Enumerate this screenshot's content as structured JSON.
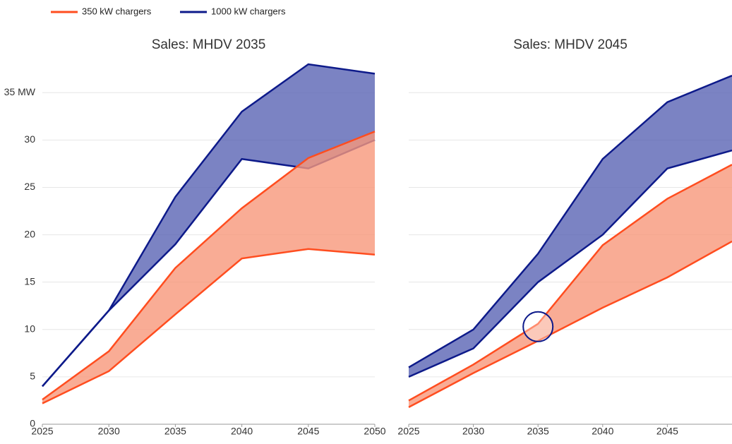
{
  "chart_data": [
    {
      "type": "range-area",
      "title": "Sales: MHDV 2035",
      "x": [
        2025,
        2030,
        2035,
        2040,
        2045,
        2050
      ],
      "xlim": [
        2025,
        2050
      ],
      "xticks": [
        2025,
        2030,
        2035,
        2040,
        2045,
        2050
      ],
      "ylim": [
        0,
        38
      ],
      "yticks": [
        0,
        5,
        10,
        15,
        20,
        25,
        30,
        {
          "value": 35,
          "label": "35 MW"
        }
      ],
      "grid": true,
      "show_ytick_labels": true,
      "series": [
        {
          "name": "350 kW chargers",
          "color": "#ff4d1f",
          "fill": "#f7977a",
          "high": [
            2.6,
            7.7,
            16.5,
            22.8,
            28.1,
            30.9
          ],
          "low": [
            2.2,
            5.6,
            11.6,
            17.5,
            18.5,
            17.9
          ]
        },
        {
          "name": "1000 kW chargers",
          "color": "#0d1a8a",
          "fill": "#5a64b4",
          "high": [
            4.0,
            12,
            24,
            33,
            38,
            37
          ],
          "low": [
            4.0,
            12,
            19,
            28,
            27,
            30
          ]
        }
      ]
    },
    {
      "type": "range-area",
      "title": "Sales: MHDV 2045",
      "x": [
        2025,
        2030,
        2035,
        2040,
        2045,
        2050
      ],
      "xlim": [
        2025,
        2050
      ],
      "xticks": [
        2025,
        2030,
        2035,
        2040,
        2045
      ],
      "ylim": [
        0,
        38
      ],
      "yticks": [
        0,
        5,
        10,
        15,
        20,
        25,
        30,
        35
      ],
      "grid": true,
      "show_ytick_labels": false,
      "highlight": {
        "x": 2035,
        "y": 10.3
      },
      "series": [
        {
          "name": "350 kW chargers",
          "color": "#ff4d1f",
          "fill": "#f7977a",
          "high": [
            2.5,
            6.3,
            10.6,
            18.9,
            23.8,
            27.4
          ],
          "low": [
            1.8,
            5.4,
            8.8,
            12.3,
            15.5,
            19.3
          ]
        },
        {
          "name": "1000 kW chargers",
          "color": "#0d1a8a",
          "fill": "#5a64b4",
          "high": [
            6.0,
            10,
            18,
            28,
            34,
            36.8
          ],
          "low": [
            5.0,
            8,
            15,
            20,
            27,
            28.9
          ]
        }
      ]
    }
  ]
}
